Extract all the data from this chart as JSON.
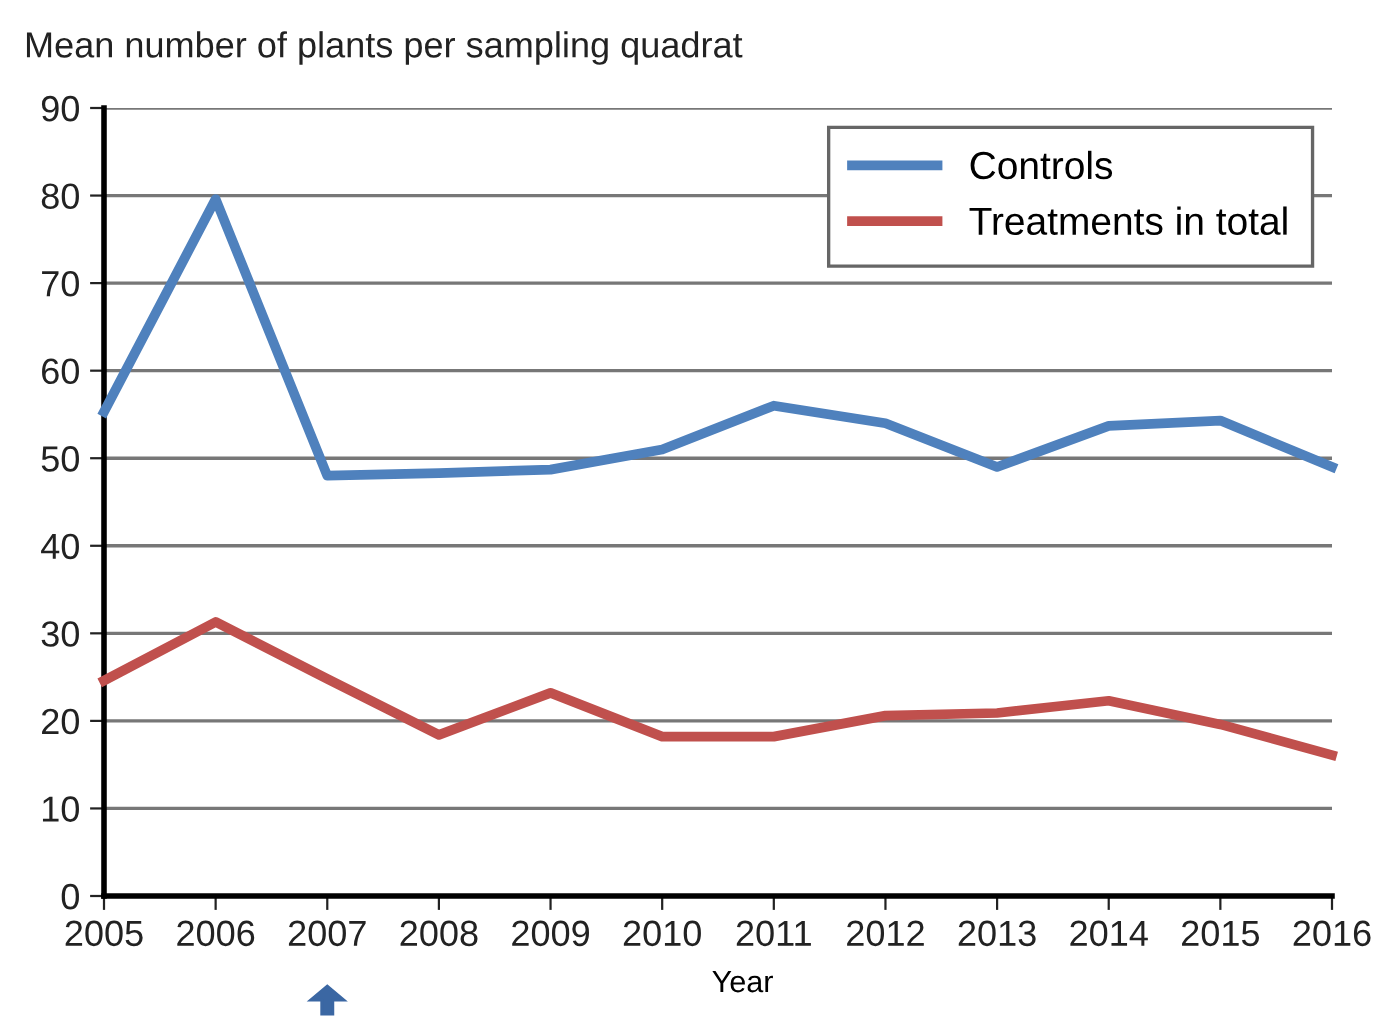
{
  "chart_data": {
    "type": "line",
    "ylabel": "Mean number of plants per sampling quadrat",
    "xlabel": "Year",
    "x": [
      2005,
      2006,
      2007,
      2008,
      2009,
      2010,
      2011,
      2012,
      2013,
      2014,
      2015,
      2016
    ],
    "series": [
      {
        "name": "Controls",
        "color": "#4f81bd",
        "values": [
          55.3,
          79.6,
          48,
          48.3,
          48.7,
          51,
          56,
          54,
          49,
          53.7,
          54.3,
          49
        ]
      },
      {
        "name": "Treatments in total",
        "color": "#c0504d",
        "values": [
          24.6,
          31.3,
          24.8,
          18.4,
          23.2,
          18.2,
          18.2,
          20.6,
          20.9,
          22.3,
          19.6,
          16.1
        ]
      }
    ],
    "xlim": [
      2005,
      2016
    ],
    "xticks": [
      2005,
      2006,
      2007,
      2008,
      2009,
      2010,
      2011,
      2012,
      2013,
      2014,
      2015,
      2016
    ],
    "ylim": [
      0,
      90
    ],
    "yticks": [
      0,
      10,
      20,
      30,
      40,
      50,
      60,
      70,
      80,
      90
    ],
    "grid": "y",
    "legend": "top right",
    "marker": "none",
    "line_style": "solid"
  }
}
